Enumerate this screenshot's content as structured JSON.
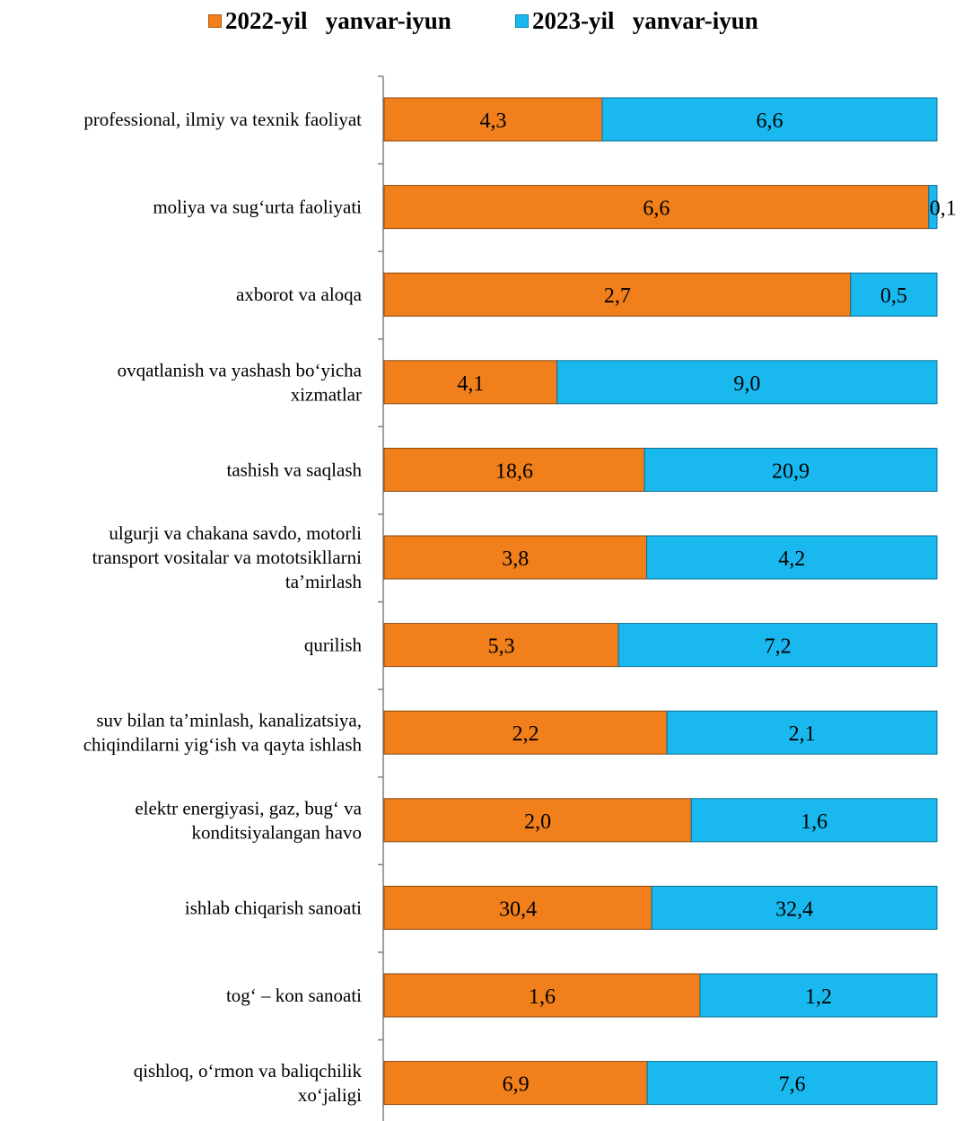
{
  "chart_data": {
    "type": "bar",
    "orientation": "horizontal",
    "stacked": "percent",
    "legend_position": "top",
    "grid": false,
    "categories": [
      [
        "professional, ilmiy va texnik faoliyat"
      ],
      [
        "moliya va sug‘urta faoliyati"
      ],
      [
        "axborot va aloqa"
      ],
      [
        "ovqatlanish va yashash bo‘yicha",
        "xizmatlar"
      ],
      [
        "tashish va saqlash"
      ],
      [
        "ulgurji va chakana savdo, motorli",
        "transport vositalar va mototsikllarni",
        "ta’mirlash"
      ],
      [
        "qurilish"
      ],
      [
        "suv bilan ta’minlash, kanalizatsiya,",
        "chiqindilarni yig‘ish va qayta ishlash"
      ],
      [
        "elektr energiyasi, gaz, bug‘ va",
        "konditsiyalangan havo"
      ],
      [
        "ishlab chiqarish sanoati"
      ],
      [
        "tog‘ – kon sanoati"
      ],
      [
        "qishloq, o‘rmon va baliqchilik",
        "xo‘jaligi"
      ]
    ],
    "series": [
      {
        "name": "2022-yil   yanvar-iyun",
        "color": "#F07F1C",
        "values": [
          4.3,
          6.6,
          2.7,
          4.1,
          18.6,
          3.8,
          5.3,
          2.2,
          2.0,
          30.4,
          1.6,
          6.9
        ],
        "labels": [
          "4,3",
          "6,6",
          "2,7",
          "4,1",
          "18,6",
          "3,8",
          "5,3",
          "2,2",
          "2,0",
          "30,4",
          "1,6",
          "6,9"
        ]
      },
      {
        "name": "2023-yil   yanvar-iyun",
        "color": "#19B9F0",
        "values": [
          6.6,
          0.1,
          0.5,
          9.0,
          20.9,
          4.2,
          7.2,
          2.1,
          1.6,
          32.4,
          1.2,
          7.6
        ],
        "labels": [
          "6,6",
          "0,1",
          "0,5",
          "9,0",
          "20,9",
          "4,2",
          "7,2",
          "2,1",
          "1,6",
          "32,4",
          "1,2",
          "7,6"
        ]
      }
    ]
  }
}
